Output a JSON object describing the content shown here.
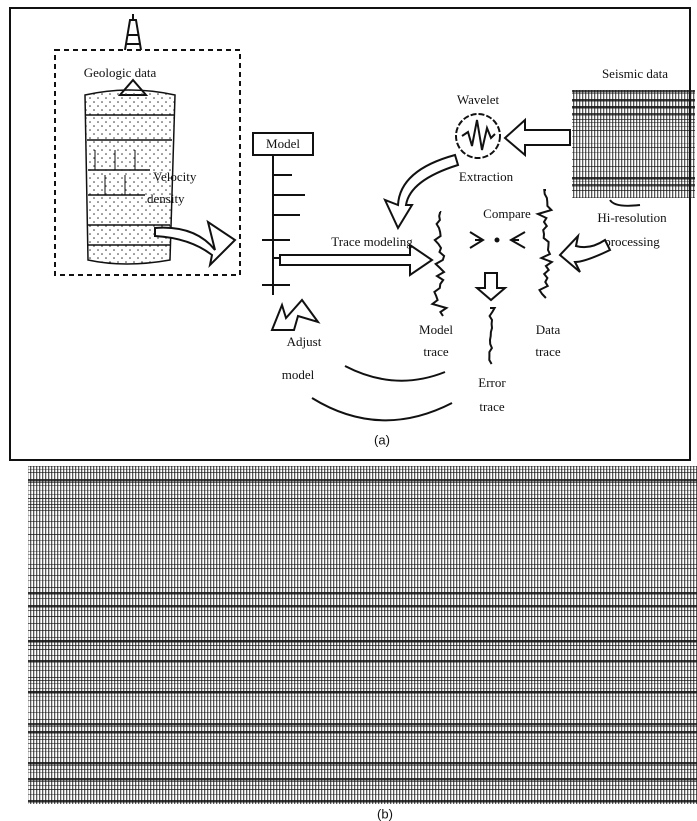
{
  "panel_a": {
    "label": "(a)",
    "geologic_data": "Geologic data",
    "velocity_density": [
      "Velocity",
      "density"
    ],
    "model": "Model",
    "trace_modeling": "Trace modeling",
    "wavelet": "Wavelet",
    "extraction": "Extraction",
    "seismic_data": "Seismic data",
    "hi_resolution_processing": [
      "Hi-resolution",
      "processing"
    ],
    "compare": "Compare",
    "model_trace": [
      "Model",
      "trace"
    ],
    "data_trace": [
      "Data",
      "trace"
    ],
    "error_trace": [
      "Error",
      "trace"
    ],
    "adjust_model": [
      "Adjust",
      "model"
    ]
  },
  "panel_b": {
    "label": "(b)"
  }
}
